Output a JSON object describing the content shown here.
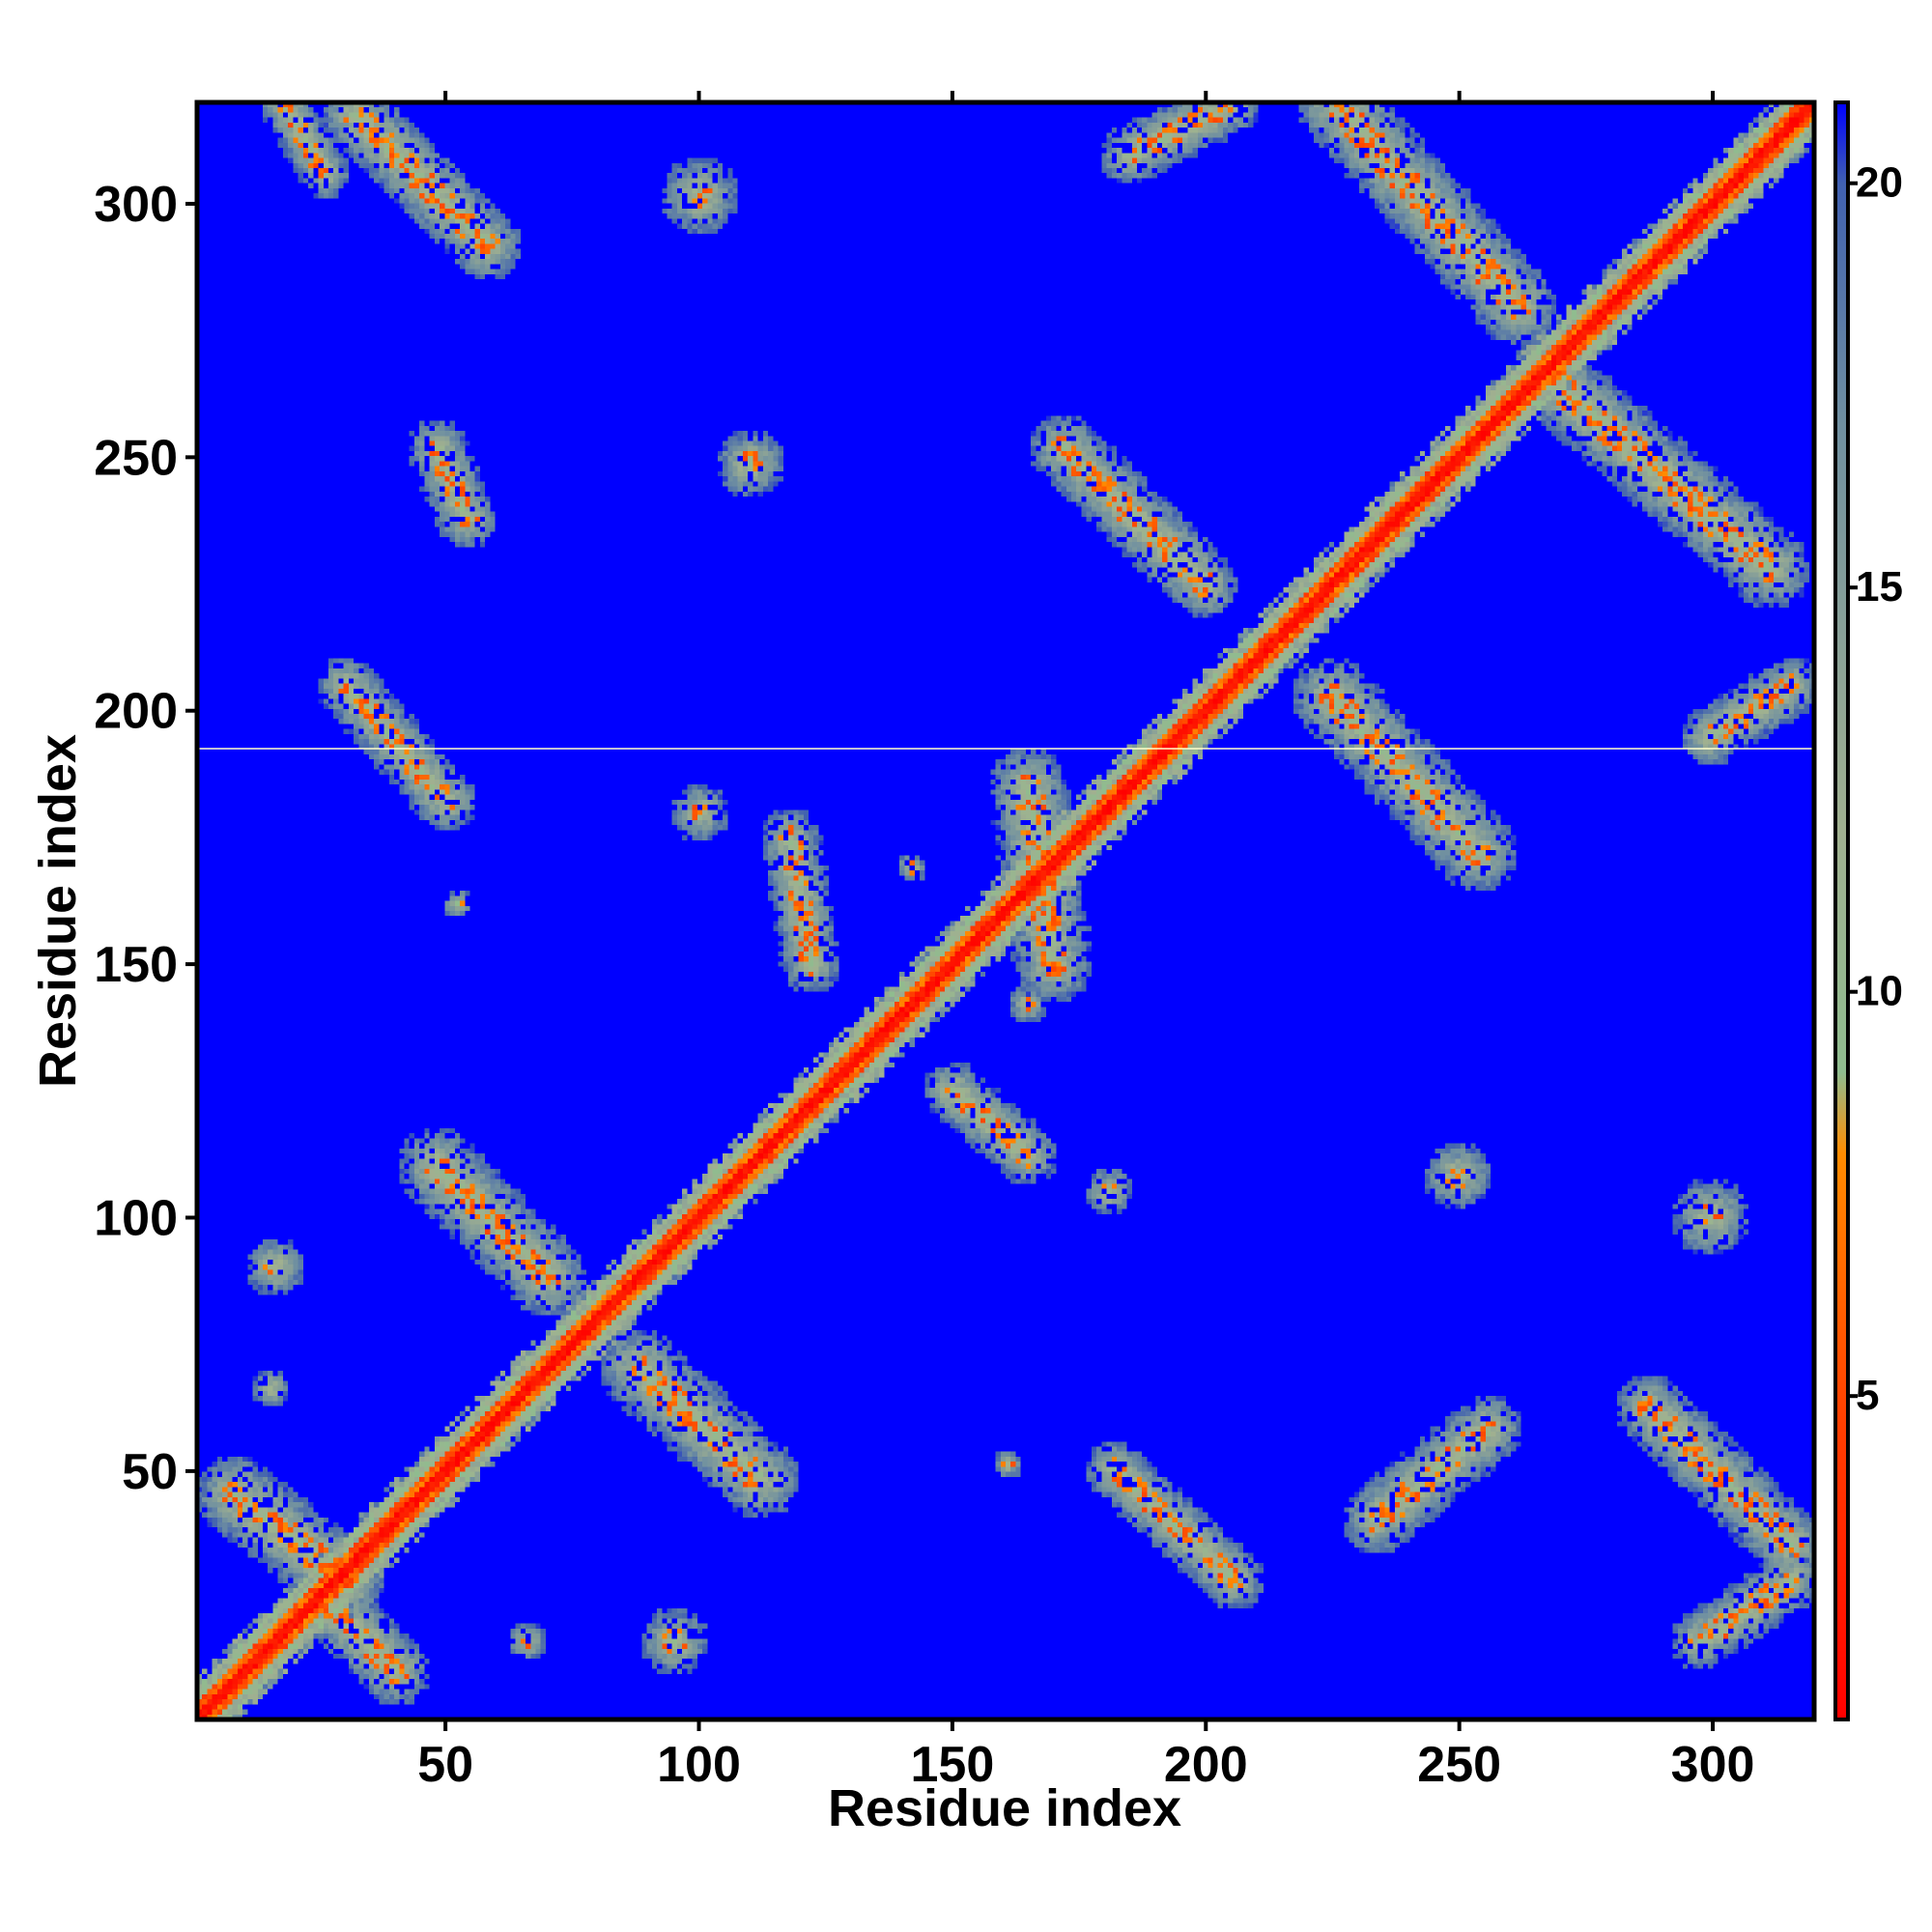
{
  "chart_data": {
    "type": "heatmap",
    "title": "",
    "xlabel": "Residue index",
    "ylabel": "Residue index",
    "n_residues": 320,
    "xlim": [
      1,
      320
    ],
    "ylim": [
      1,
      320
    ],
    "x_ticks": [
      50,
      100,
      150,
      200,
      250,
      300
    ],
    "y_ticks": [
      50,
      100,
      150,
      200,
      250,
      300
    ],
    "x_tick_labels": [
      "50",
      "100",
      "150",
      "200",
      "250",
      "300"
    ],
    "y_tick_labels": [
      "50",
      "100",
      "150",
      "200",
      "250",
      "300"
    ],
    "colorbar": {
      "min": 1,
      "max": 21,
      "ticks": [
        5,
        10,
        15,
        20
      ],
      "tick_labels": [
        "5",
        "10",
        "15",
        "20"
      ],
      "colors": [
        {
          "value": 1,
          "color": "#ff0000"
        },
        {
          "value": 5,
          "color": "#ff4500"
        },
        {
          "value": 8,
          "color": "#ff8c00"
        },
        {
          "value": 9,
          "color": "#8fbc8f"
        },
        {
          "value": 12,
          "color": "#a0b090"
        },
        {
          "value": 17,
          "color": "#7090a0"
        },
        {
          "value": 20,
          "color": "#4060b0"
        },
        {
          "value": 21,
          "color": "#0000ff"
        }
      ]
    },
    "background_color": "#0000ff",
    "diagonal": {
      "value": 3
    },
    "contact_regions": [
      {
        "kind": "strand",
        "x1": 32,
        "y1": 318,
        "x2": 58,
        "y2": 292,
        "width": 7
      },
      {
        "kind": "strand",
        "x1": 18,
        "y1": 320,
        "x2": 26,
        "y2": 306,
        "width": 5
      },
      {
        "kind": "blob",
        "x": 100,
        "y": 302,
        "r": 8
      },
      {
        "kind": "strand",
        "x1": 48,
        "y1": 252,
        "x2": 54,
        "y2": 238,
        "width": 6
      },
      {
        "kind": "blob",
        "x": 110,
        "y": 249,
        "r": 7
      },
      {
        "kind": "strand",
        "x1": 30,
        "y1": 205,
        "x2": 50,
        "y2": 182,
        "width": 6
      },
      {
        "kind": "blob",
        "x": 52,
        "y": 162,
        "r": 3
      },
      {
        "kind": "blob",
        "x": 16,
        "y": 90,
        "r": 6
      },
      {
        "kind": "blob",
        "x": 15,
        "y": 66,
        "r": 4
      },
      {
        "kind": "strand",
        "x1": 48,
        "y1": 110,
        "x2": 70,
        "y2": 88,
        "width": 8
      },
      {
        "kind": "strand",
        "x1": 88,
        "y1": 70,
        "x2": 112,
        "y2": 48,
        "width": 8
      },
      {
        "kind": "blob",
        "x": 95,
        "y": 16,
        "r": 7
      },
      {
        "kind": "blob",
        "x": 66,
        "y": 16,
        "r": 4
      },
      {
        "kind": "strand",
        "x1": 8,
        "y1": 45,
        "x2": 30,
        "y2": 28,
        "width": 8
      },
      {
        "kind": "strand",
        "x1": 28,
        "y1": 22,
        "x2": 40,
        "y2": 10,
        "width": 7
      },
      {
        "kind": "strand",
        "x1": 118,
        "y1": 175,
        "x2": 122,
        "y2": 150,
        "width": 6
      },
      {
        "kind": "strand",
        "x1": 150,
        "y1": 125,
        "x2": 165,
        "y2": 112,
        "width": 6
      },
      {
        "kind": "blob",
        "x": 165,
        "y": 142,
        "r": 4
      },
      {
        "kind": "blob",
        "x": 142,
        "y": 169,
        "r": 3
      },
      {
        "kind": "strand",
        "x1": 165,
        "y1": 185,
        "x2": 170,
        "y2": 150,
        "width": 8
      },
      {
        "kind": "blob",
        "x": 100,
        "y": 180,
        "r": 6
      },
      {
        "kind": "blob",
        "x": 181,
        "y": 105,
        "r": 5
      },
      {
        "kind": "strand",
        "x1": 172,
        "y1": 252,
        "x2": 200,
        "y2": 225,
        "width": 7
      },
      {
        "kind": "strand",
        "x1": 185,
        "y1": 310,
        "x2": 205,
        "y2": 320,
        "width": 6
      },
      {
        "kind": "strand",
        "x1": 226,
        "y1": 320,
        "x2": 262,
        "y2": 280,
        "width": 8
      },
      {
        "kind": "strand",
        "x1": 268,
        "y1": 266,
        "x2": 312,
        "y2": 228,
        "width": 8
      },
      {
        "kind": "strand",
        "x1": 300,
        "y1": 195,
        "x2": 316,
        "y2": 205,
        "width": 6
      },
      {
        "kind": "strand",
        "x1": 225,
        "y1": 203,
        "x2": 254,
        "y2": 172,
        "width": 8
      },
      {
        "kind": "blob",
        "x": 250,
        "y": 108,
        "r": 7
      },
      {
        "kind": "blob",
        "x": 300,
        "y": 100,
        "r": 8
      },
      {
        "kind": "strand",
        "x1": 234,
        "y1": 40,
        "x2": 256,
        "y2": 58,
        "width": 7
      },
      {
        "kind": "strand",
        "x1": 182,
        "y1": 50,
        "x2": 206,
        "y2": 28,
        "width": 6
      },
      {
        "kind": "blob",
        "x": 161,
        "y": 51,
        "r": 3
      },
      {
        "kind": "strand",
        "x1": 288,
        "y1": 62,
        "x2": 316,
        "y2": 35,
        "width": 7
      },
      {
        "kind": "strand",
        "x1": 298,
        "y1": 16,
        "x2": 316,
        "y2": 28,
        "width": 6
      }
    ]
  }
}
